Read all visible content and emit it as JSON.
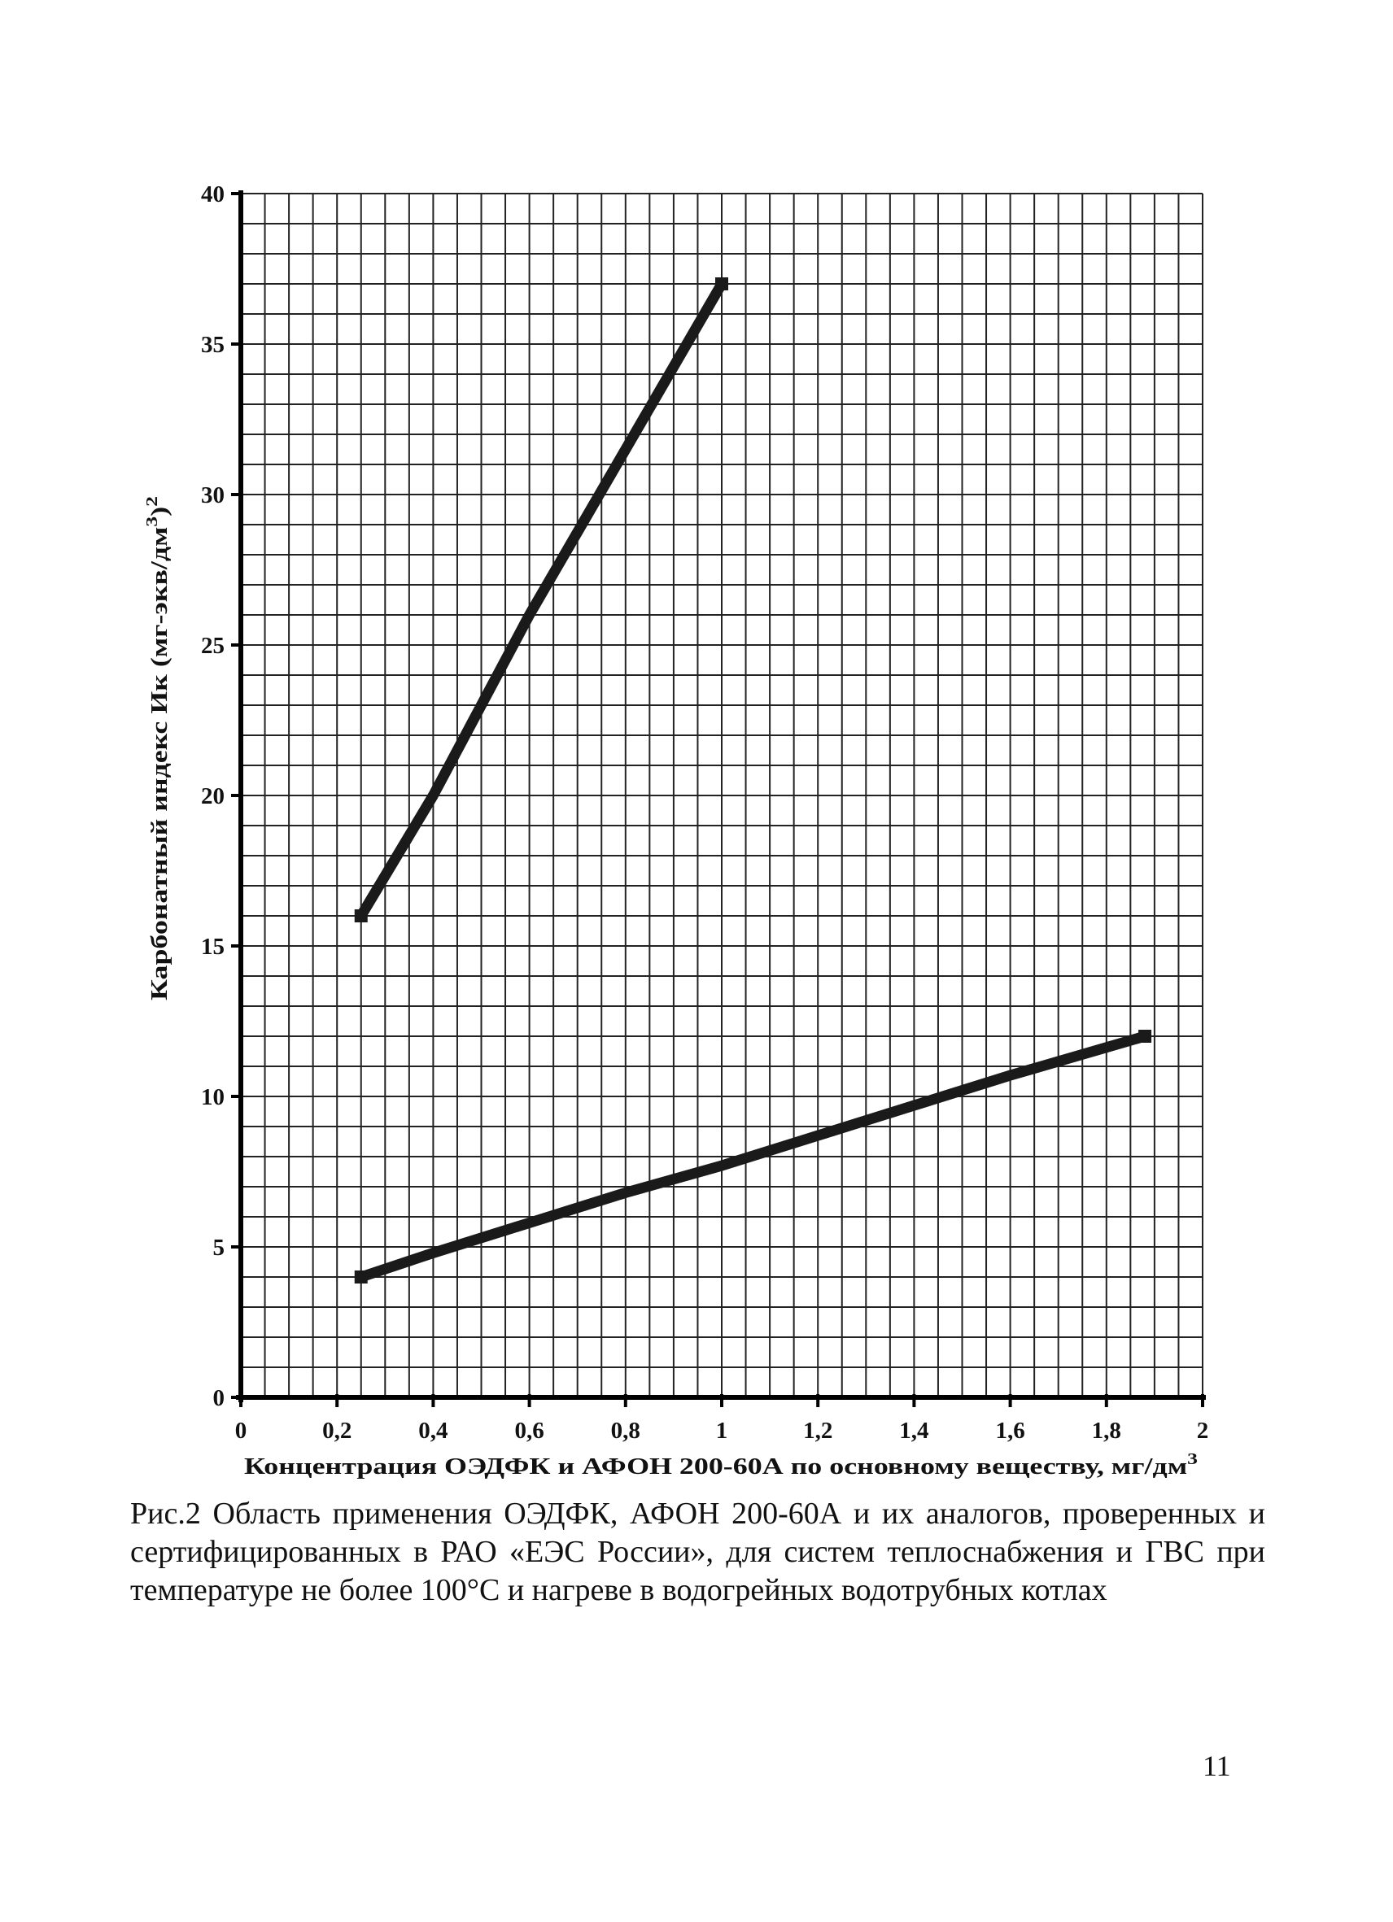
{
  "chart_data": {
    "type": "line",
    "xlabel": "Концентрация ОЭДФК и АФОН 200-60А по основному веществу, мг/дм",
    "xlabel_sup": "3",
    "ylabel": "Карбонатный индекс Ик (мг-экв/дм",
    "ylabel_sup1": "3",
    "ylabel_mid": ")",
    "ylabel_sup2": "2",
    "xlim": [
      0,
      2
    ],
    "ylim": [
      0,
      40
    ],
    "x_ticks": [
      "0",
      "0,2",
      "0,4",
      "0,6",
      "0,8",
      "1",
      "1,2",
      "1,4",
      "1,6",
      "1,8",
      "2"
    ],
    "y_ticks": [
      "0",
      "5",
      "10",
      "15",
      "20",
      "25",
      "30",
      "35",
      "40"
    ],
    "grid": true,
    "series": [
      {
        "color": "#1a1a1a",
        "x": [
          0.25,
          0.4,
          0.6,
          0.8,
          1.0
        ],
        "y": [
          16,
          20,
          26,
          31.5,
          37
        ]
      },
      {
        "color": "#1a1a1a",
        "x": [
          0.25,
          0.4,
          0.6,
          0.8,
          1.0,
          1.2,
          1.4,
          1.6,
          1.88
        ],
        "y": [
          4,
          4.8,
          5.8,
          6.8,
          7.7,
          8.7,
          9.7,
          10.7,
          12
        ]
      }
    ]
  },
  "caption": "Рис.2 Область применения ОЭДФК, АФОН 200-60А и их аналогов, проверенных и сертифицированных в РАО «ЕЭС России», для систем теплоснабжения и ГВС при температуре не более 100°С и нагреве в водогрейных водотрубных котлах",
  "page_number": "11"
}
